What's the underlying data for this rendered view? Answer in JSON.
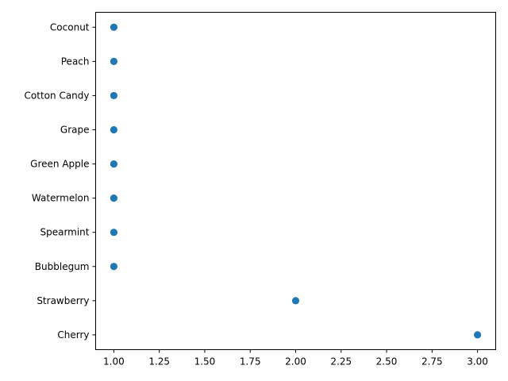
{
  "chart_data": {
    "type": "scatter",
    "title": "",
    "xlabel": "",
    "ylabel": "",
    "xlim": [
      0.9,
      3.1
    ],
    "grid": false,
    "marker_color": "#1f77b4",
    "categories": [
      "Cherry",
      "Strawberry",
      "Bubblegum",
      "Spearmint",
      "Watermelon",
      "Green Apple",
      "Grape",
      "Cotton Candy",
      "Peach",
      "Coconut"
    ],
    "values": [
      3,
      2,
      1,
      1,
      1,
      1,
      1,
      1,
      1,
      1
    ],
    "x_ticks": [
      "1.00",
      "1.25",
      "1.50",
      "1.75",
      "2.00",
      "2.25",
      "2.50",
      "2.75",
      "3.00"
    ]
  }
}
